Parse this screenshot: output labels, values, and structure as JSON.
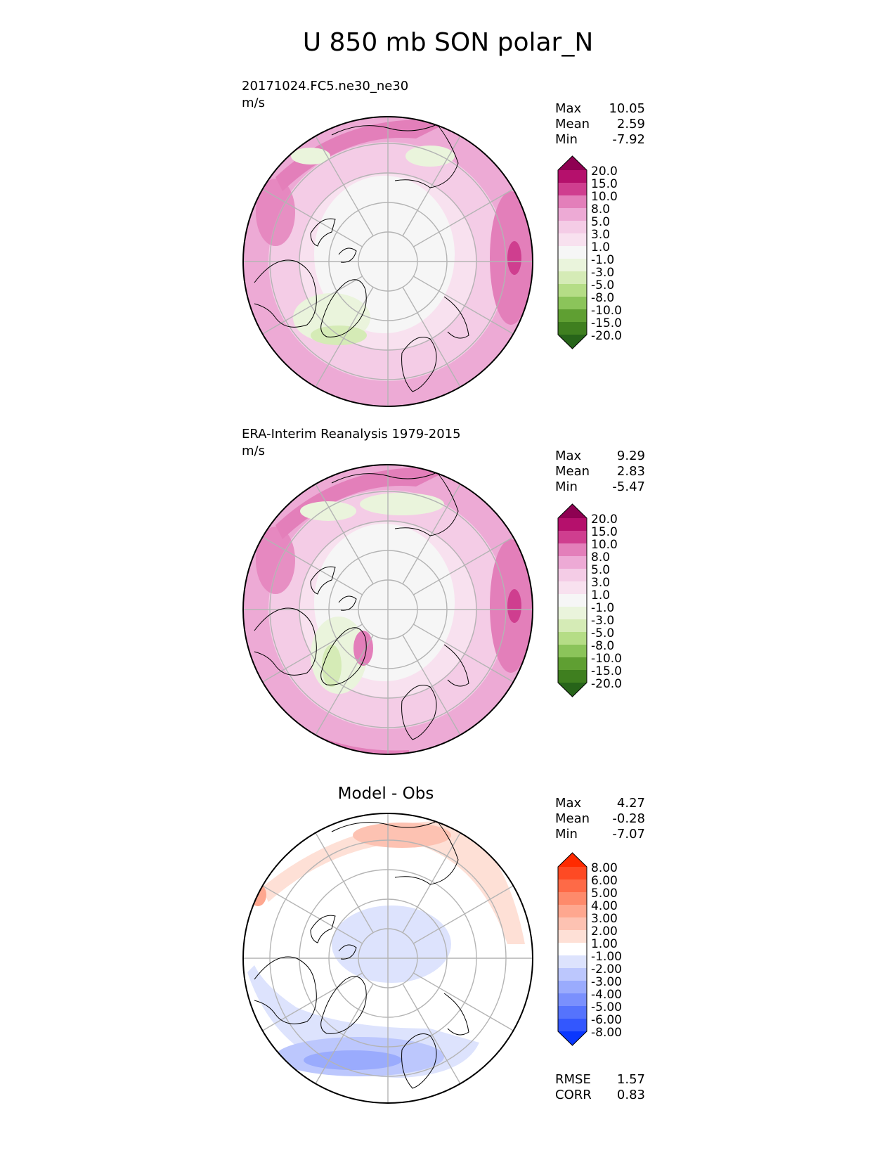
{
  "title": "U 850 mb SON polar_N",
  "panels": [
    {
      "line1": "20171024.FC5.ne30_ne30",
      "line2": "m/s",
      "stats": [
        {
          "label": "Max",
          "value": "10.05"
        },
        {
          "label": "Mean",
          "value": "2.59"
        },
        {
          "label": "Min",
          "value": "-7.92"
        }
      ]
    },
    {
      "line1": "ERA-Interim Reanalysis 1979-2015",
      "line2": "m/s",
      "stats": [
        {
          "label": "Max",
          "value": "9.29"
        },
        {
          "label": "Mean",
          "value": "2.83"
        },
        {
          "label": "Min",
          "value": "-5.47"
        }
      ]
    },
    {
      "heading": "Model - Obs",
      "stats": [
        {
          "label": "Max",
          "value": "4.27"
        },
        {
          "label": "Mean",
          "value": "-0.28"
        },
        {
          "label": "Min",
          "value": "-7.07"
        }
      ],
      "metrics": [
        {
          "label": "RMSE",
          "value": "1.57"
        },
        {
          "label": "CORR",
          "value": "0.83"
        }
      ]
    }
  ],
  "colorbars": {
    "field": {
      "labels": [
        "20.0",
        "15.0",
        "10.0",
        "8.0",
        "5.0",
        "3.0",
        "1.0",
        "-1.0",
        "-3.0",
        "-5.0",
        "-8.0",
        "-10.0",
        "-15.0",
        "-20.0"
      ],
      "colors": [
        "#8e0152",
        "#b5106c",
        "#cf3e8f",
        "#e37fba",
        "#edaad5",
        "#f4cce6",
        "#f8e1ef",
        "#f6f6f6",
        "#eaf4dc",
        "#d5ebb6",
        "#b5dd86",
        "#8bc45a",
        "#5f9f32",
        "#3f7f1f",
        "#276419"
      ]
    },
    "diff": {
      "labels": [
        "8.00",
        "6.00",
        "5.00",
        "4.00",
        "3.00",
        "2.00",
        "1.00",
        "-1.00",
        "-2.00",
        "-3.00",
        "-4.00",
        "-5.00",
        "-6.00",
        "-8.00"
      ],
      "colors": [
        "#ff2a00",
        "#fe4a24",
        "#fe6a47",
        "#fe8a6b",
        "#fea78f",
        "#fdc2b2",
        "#fee0d6",
        "#ffffff",
        "#dde3fd",
        "#bcc7fd",
        "#9aabfd",
        "#7a90fd",
        "#5573fd",
        "#3357fe",
        "#0a37fe"
      ]
    }
  },
  "chart_data": [
    {
      "type": "heatmap",
      "title": "20171024.FC5.ne30_ne30",
      "units": "m/s",
      "projection": "north polar stereographic",
      "variable": "U 850 mb SON",
      "max": 10.05,
      "mean": 2.59,
      "min": -7.92,
      "levels": [
        -20,
        -15,
        -10,
        -8,
        -5,
        -3,
        -1,
        1,
        3,
        5,
        8,
        10,
        15,
        20
      ],
      "colormap": "PiYG_r"
    },
    {
      "type": "heatmap",
      "title": "ERA-Interim Reanalysis 1979-2015",
      "units": "m/s",
      "projection": "north polar stereographic",
      "variable": "U 850 mb SON",
      "max": 9.29,
      "mean": 2.83,
      "min": -5.47,
      "levels": [
        -20,
        -15,
        -10,
        -8,
        -5,
        -3,
        -1,
        1,
        3,
        5,
        8,
        10,
        15,
        20
      ],
      "colormap": "PiYG_r"
    },
    {
      "type": "heatmap",
      "title": "Model - Obs",
      "projection": "north polar stereographic",
      "max": 4.27,
      "mean": -0.28,
      "min": -7.07,
      "rmse": 1.57,
      "corr": 0.83,
      "levels": [
        -8,
        -6,
        -5,
        -4,
        -3,
        -2,
        -1,
        1,
        2,
        3,
        4,
        5,
        6,
        8
      ],
      "colormap": "bwr"
    }
  ]
}
